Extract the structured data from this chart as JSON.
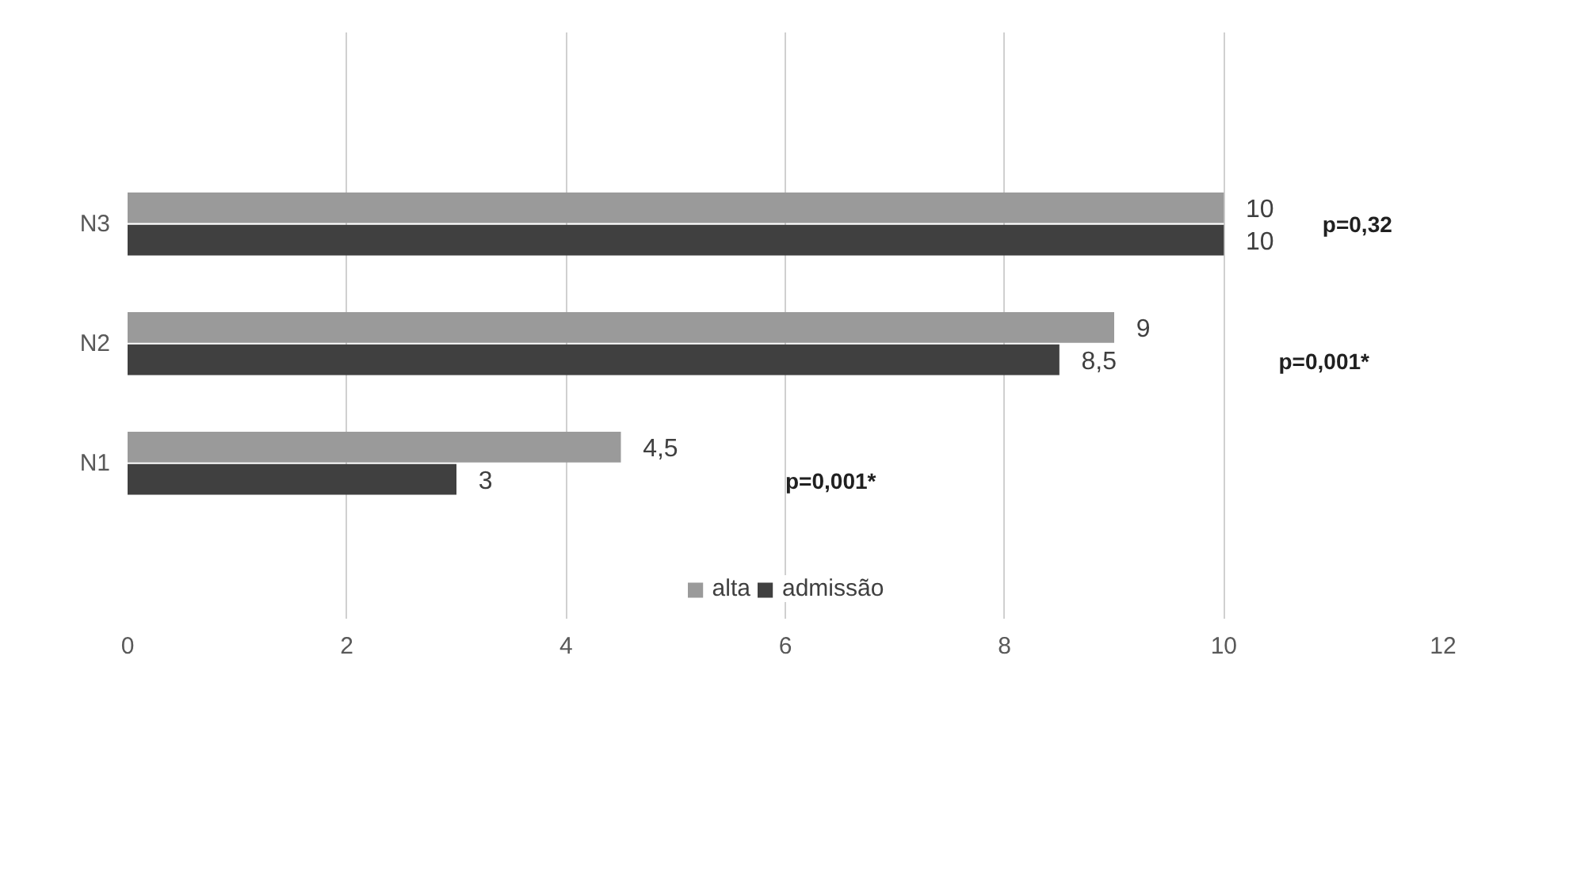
{
  "chart_data": {
    "type": "bar",
    "orientation": "horizontal",
    "categories": [
      "N3",
      "N2",
      "N1"
    ],
    "series": [
      {
        "name": "alta",
        "color": "#9a9a9a",
        "values": [
          10,
          9,
          4.5
        ],
        "value_labels": [
          "10",
          "9",
          "4,5"
        ]
      },
      {
        "name": "admissão",
        "color": "#404040",
        "values": [
          10,
          8.5,
          3
        ],
        "value_labels": [
          "10",
          "8,5",
          "3"
        ]
      }
    ],
    "xlim": [
      0,
      12
    ],
    "xticks": [
      0,
      2,
      4,
      6,
      8,
      10,
      12
    ],
    "grid": "x",
    "legend": "bottom",
    "annotations": [
      "p=0,32",
      "p=0,001*",
      "p=0,001*"
    ]
  }
}
